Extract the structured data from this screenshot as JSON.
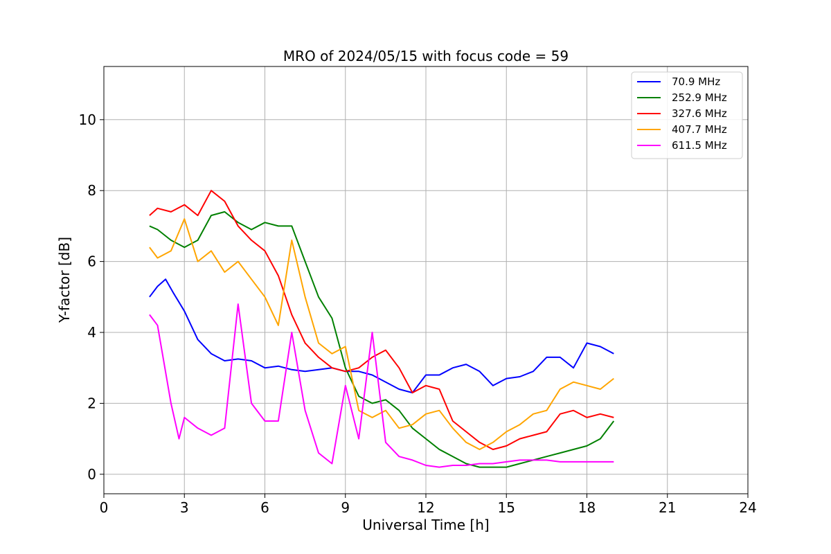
{
  "chart_data": {
    "type": "line",
    "title": "MRO of 2024/05/15 with focus code = 59",
    "xlabel": "Universal Time [h]",
    "ylabel": "Y-factor [dB]",
    "xlim": [
      0,
      24
    ],
    "ylim": [
      -0.55,
      11.5
    ],
    "xticks": [
      0,
      3,
      6,
      9,
      12,
      15,
      18,
      21,
      24
    ],
    "yticks": [
      0,
      2,
      4,
      6,
      8,
      10
    ],
    "grid": true,
    "legend_position": "top-right",
    "x_range_of_data": [
      1.7,
      19.0
    ],
    "series": [
      {
        "name": " 70.9 MHz",
        "color": "#0000ff",
        "x": [
          1.7,
          2.0,
          2.3,
          2.6,
          3.0,
          3.5,
          4.0,
          4.5,
          5.0,
          5.5,
          6.0,
          6.5,
          7.0,
          7.5,
          8.0,
          8.5,
          9.0,
          9.5,
          10.0,
          10.5,
          11.0,
          11.5,
          12.0,
          12.5,
          13.0,
          13.5,
          14.0,
          14.5,
          15.0,
          15.5,
          16.0,
          16.5,
          17.0,
          17.5,
          18.0,
          18.5,
          19.0
        ],
        "values": [
          5.0,
          5.3,
          5.5,
          5.1,
          4.6,
          3.8,
          3.4,
          3.2,
          3.25,
          3.2,
          3.0,
          3.05,
          2.95,
          2.9,
          2.95,
          3.0,
          2.9,
          2.9,
          2.8,
          2.6,
          2.4,
          2.3,
          2.8,
          2.8,
          3.0,
          3.1,
          2.9,
          2.5,
          2.7,
          2.75,
          2.9,
          3.3,
          3.3,
          3.0,
          3.7,
          3.6,
          3.4
        ]
      },
      {
        "name": "252.9 MHz",
        "color": "#008000",
        "x": [
          1.7,
          2.0,
          2.5,
          3.0,
          3.5,
          4.0,
          4.5,
          5.0,
          5.5,
          6.0,
          6.5,
          7.0,
          7.5,
          8.0,
          8.5,
          9.0,
          9.5,
          10.0,
          10.5,
          11.0,
          11.5,
          12.0,
          12.5,
          13.0,
          13.5,
          14.0,
          14.5,
          15.0,
          15.5,
          16.0,
          16.5,
          17.0,
          17.5,
          18.0,
          18.5,
          19.0
        ],
        "values": [
          7.0,
          6.9,
          6.6,
          6.4,
          6.6,
          7.3,
          7.4,
          7.1,
          6.9,
          7.1,
          7.0,
          7.0,
          6.0,
          5.0,
          4.4,
          3.0,
          2.2,
          2.0,
          2.1,
          1.8,
          1.3,
          1.0,
          0.7,
          0.5,
          0.3,
          0.2,
          0.2,
          0.2,
          0.3,
          0.4,
          0.5,
          0.6,
          0.7,
          0.8,
          1.0,
          1.5
        ]
      },
      {
        "name": "327.6 MHz",
        "color": "#ff0000",
        "x": [
          1.7,
          2.0,
          2.5,
          3.0,
          3.5,
          4.0,
          4.5,
          5.0,
          5.5,
          6.0,
          6.5,
          7.0,
          7.5,
          8.0,
          8.5,
          9.0,
          9.5,
          10.0,
          10.5,
          11.0,
          11.5,
          12.0,
          12.5,
          13.0,
          13.5,
          14.0,
          14.5,
          15.0,
          15.5,
          16.0,
          16.5,
          17.0,
          17.5,
          18.0,
          18.5,
          19.0
        ],
        "values": [
          7.3,
          7.5,
          7.4,
          7.6,
          7.3,
          8.0,
          7.7,
          7.0,
          6.6,
          6.3,
          5.6,
          4.5,
          3.7,
          3.3,
          3.0,
          2.9,
          3.0,
          3.3,
          3.5,
          3.0,
          2.3,
          2.5,
          2.4,
          1.5,
          1.2,
          0.9,
          0.7,
          0.8,
          1.0,
          1.1,
          1.2,
          1.7,
          1.8,
          1.6,
          1.7,
          1.6
        ]
      },
      {
        "name": "407.7 MHz",
        "color": "#ffa500",
        "x": [
          1.7,
          2.0,
          2.5,
          3.0,
          3.5,
          4.0,
          4.5,
          5.0,
          5.5,
          6.0,
          6.5,
          7.0,
          7.5,
          8.0,
          8.5,
          9.0,
          9.5,
          10.0,
          10.5,
          11.0,
          11.5,
          12.0,
          12.5,
          13.0,
          13.5,
          14.0,
          14.5,
          15.0,
          15.5,
          16.0,
          16.5,
          17.0,
          17.5,
          18.0,
          18.5,
          19.0
        ],
        "values": [
          6.4,
          6.1,
          6.3,
          7.2,
          6.0,
          6.3,
          5.7,
          6.0,
          5.5,
          5.0,
          4.2,
          6.6,
          5.0,
          3.7,
          3.4,
          3.6,
          1.8,
          1.6,
          1.8,
          1.3,
          1.4,
          1.7,
          1.8,
          1.3,
          0.9,
          0.7,
          0.9,
          1.2,
          1.4,
          1.7,
          1.8,
          2.4,
          2.6,
          2.5,
          2.4,
          2.7
        ]
      },
      {
        "name": "611.5 MHz",
        "color": "#ff00ff",
        "x": [
          1.7,
          2.0,
          2.5,
          2.8,
          3.0,
          3.5,
          4.0,
          4.5,
          5.0,
          5.5,
          6.0,
          6.5,
          7.0,
          7.5,
          8.0,
          8.5,
          9.0,
          9.5,
          10.0,
          10.5,
          11.0,
          11.5,
          12.0,
          12.5,
          13.0,
          13.5,
          14.0,
          14.5,
          15.0,
          15.5,
          16.0,
          16.5,
          17.0,
          17.5,
          18.0,
          18.5,
          19.0
        ],
        "values": [
          4.5,
          4.2,
          2.0,
          1.0,
          1.6,
          1.3,
          1.1,
          1.3,
          4.8,
          2.0,
          1.5,
          1.5,
          4.0,
          1.8,
          0.6,
          0.3,
          2.5,
          1.0,
          4.0,
          0.9,
          0.5,
          0.4,
          0.25,
          0.2,
          0.25,
          0.25,
          0.3,
          0.3,
          0.35,
          0.4,
          0.4,
          0.4,
          0.35,
          0.35,
          0.35,
          0.35,
          0.35
        ]
      }
    ]
  }
}
